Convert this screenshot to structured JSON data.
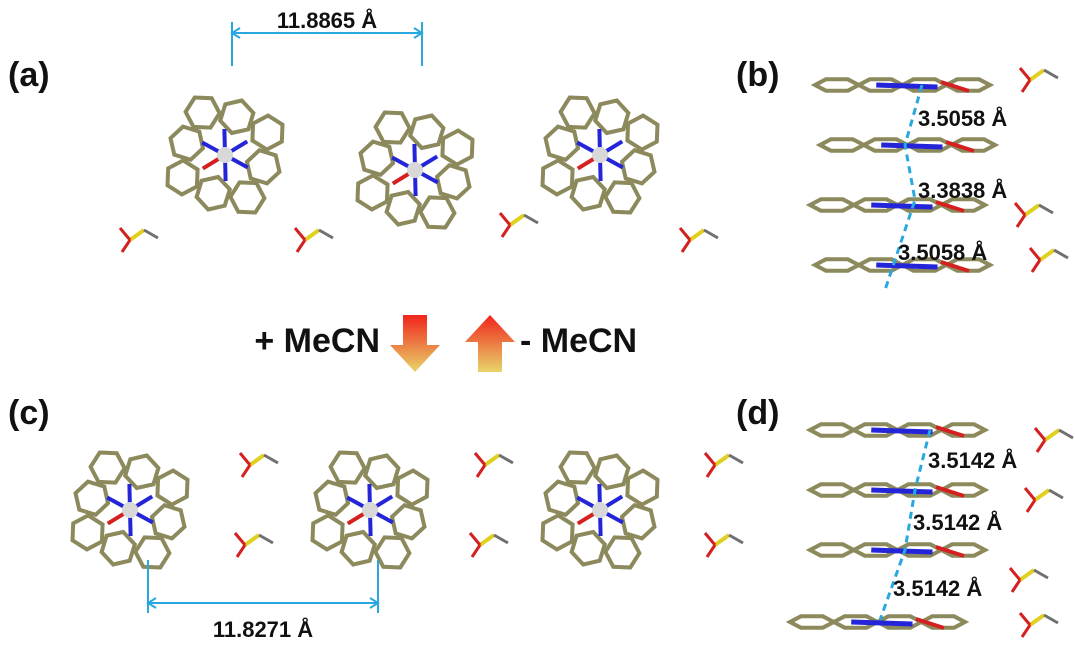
{
  "panels": [
    {
      "label": "(a)",
      "distances": [
        "11.8865 Å"
      ]
    },
    {
      "label": "(b)",
      "distances": [
        "3.5058 Å",
        "3.3838 Å",
        "3.5058 Å"
      ]
    },
    {
      "label": "(c)",
      "distances": [
        "11.8271 Å"
      ]
    },
    {
      "label": "(d)",
      "distances": [
        "3.5142 Å",
        "3.5142 Å",
        "3.5142 Å"
      ]
    }
  ],
  "arrows": {
    "add": "+ MeCN",
    "remove": "- MeCN"
  }
}
